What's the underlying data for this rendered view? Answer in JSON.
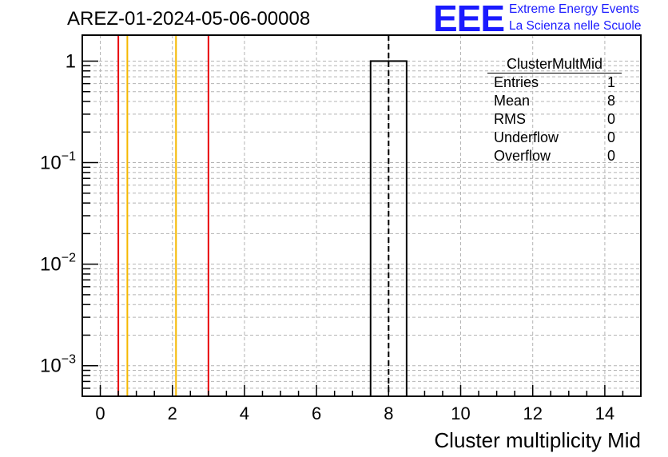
{
  "header": {
    "run_title": "AREZ-01-2024-05-06-00008",
    "logo_mark": "EEE",
    "logo_line1": "Extreme Energy Events",
    "logo_line2": "La Scienza nelle Scuole"
  },
  "stats": {
    "title": "ClusterMultMid",
    "rows": [
      {
        "label": "Entries",
        "value": "1"
      },
      {
        "label": "Mean",
        "value": "8"
      },
      {
        "label": "RMS",
        "value": "0"
      },
      {
        "label": "Underflow",
        "value": "0"
      },
      {
        "label": "Overflow",
        "value": "0"
      }
    ]
  },
  "chart_data": {
    "type": "bar",
    "title": "",
    "xlabel": "Cluster multiplicity Mid",
    "ylabel": "",
    "xlim": [
      -0.5,
      15
    ],
    "ylim": [
      0.0005,
      1.8
    ],
    "log_y": true,
    "grid": true,
    "x_ticks": [
      0,
      2,
      4,
      6,
      8,
      10,
      12,
      14
    ],
    "y_ticks": [
      {
        "value": 1,
        "base": "1",
        "exp": ""
      },
      {
        "value": 0.1,
        "base": "10",
        "exp": "−1"
      },
      {
        "value": 0.01,
        "base": "10",
        "exp": "−2"
      },
      {
        "value": 0.001,
        "base": "10",
        "exp": "−3"
      }
    ],
    "bins": [
      {
        "low": 7.5,
        "high": 8.5,
        "value": 1
      }
    ],
    "mean_line": 8,
    "reference_lines": [
      {
        "x": 0.5,
        "color": "#e8000b"
      },
      {
        "x": 0.75,
        "color": "#f5b800"
      },
      {
        "x": 2.1,
        "color": "#f5b800"
      },
      {
        "x": 3.0,
        "color": "#e8000b"
      }
    ]
  }
}
